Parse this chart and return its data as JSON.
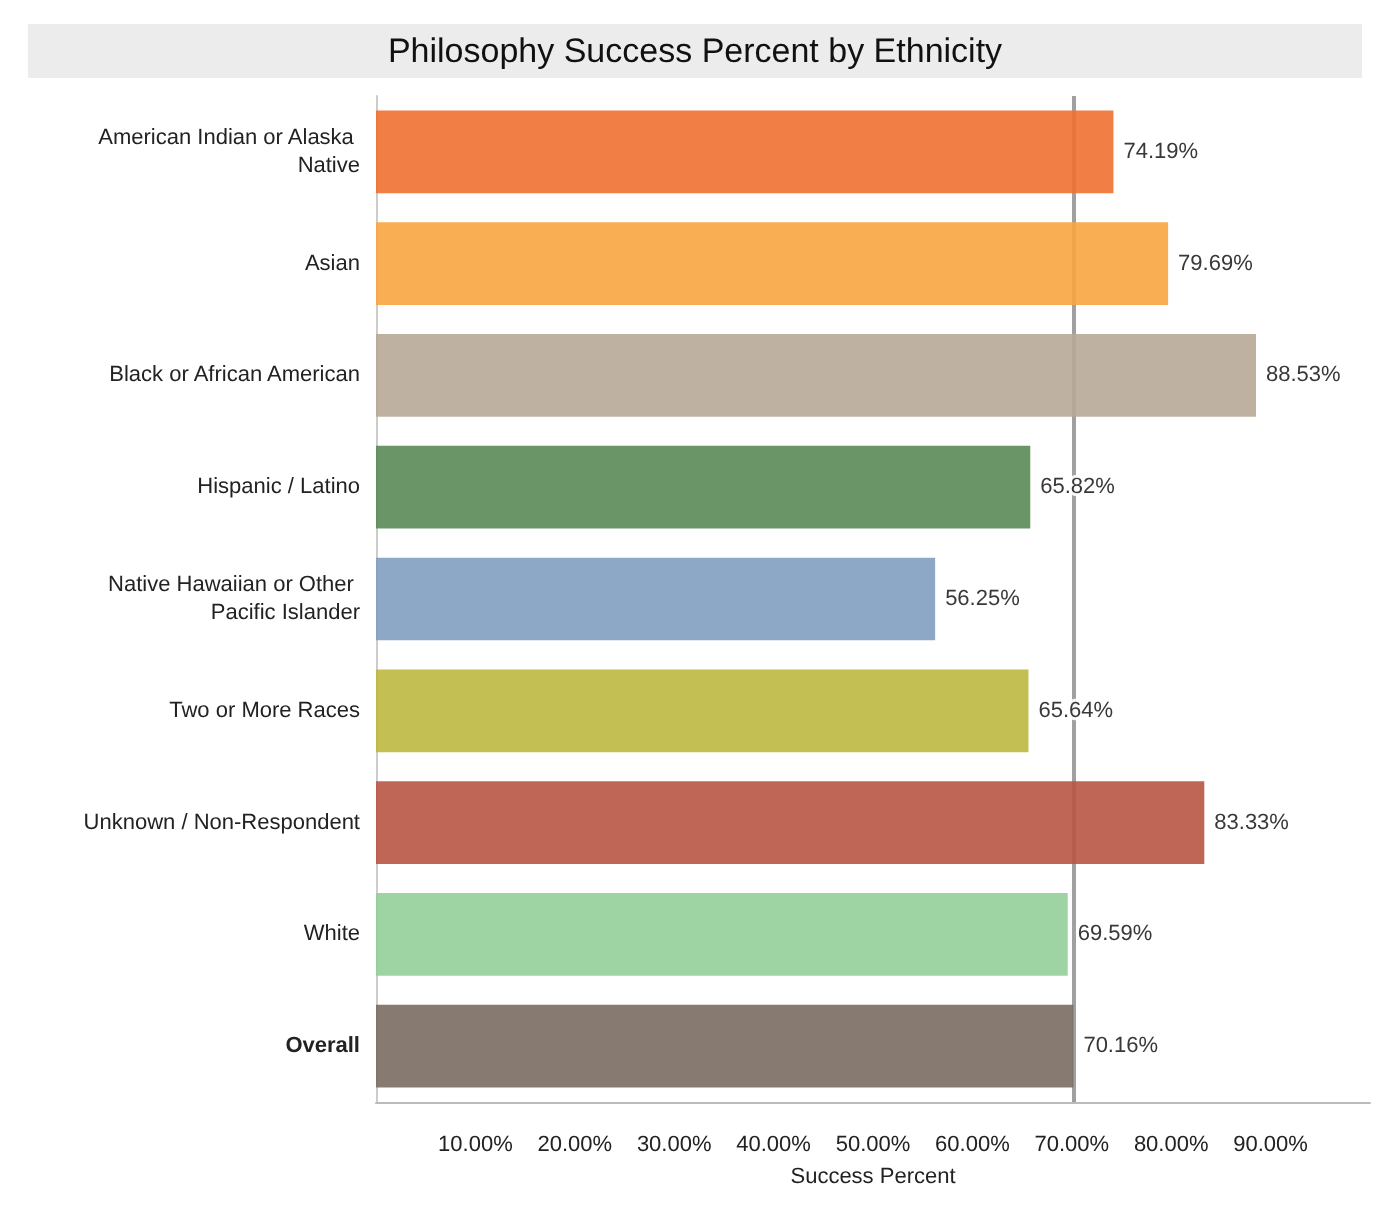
{
  "chart_data": {
    "type": "bar",
    "orientation": "horizontal",
    "title": "Philosophy Success Percent by Ethnicity",
    "xlabel": "Success Percent",
    "categories": [
      "American Indian or Alaska Native",
      "Asian",
      "Black or African American",
      "Hispanic / Latino",
      "Native Hawaiian or Other Pacific Islander",
      "Two or More Races",
      "Unknown / Non-Respondent",
      "White",
      "Overall"
    ],
    "values": [
      74.19,
      79.69,
      88.53,
      65.82,
      56.25,
      65.64,
      83.33,
      69.59,
      70.16
    ],
    "colors": [
      "#f07030",
      "#f8a540",
      "#b8a898",
      "#5a8a55",
      "#7f9ec0",
      "#bdb840",
      "#b85545",
      "#94cf9a",
      "#7a6c62"
    ],
    "value_labels": [
      "74.19%",
      "79.69%",
      "88.53%",
      "65.82%",
      "56.25%",
      "65.64%",
      "83.33%",
      "69.59%",
      "70.16%"
    ],
    "xlim": [
      0,
      100
    ],
    "xticks": [
      {
        "value": 10,
        "label": "10.00%"
      },
      {
        "value": 20,
        "label": "20.00%"
      },
      {
        "value": 30,
        "label": "30.00%"
      },
      {
        "value": 40,
        "label": "40.00%"
      },
      {
        "value": 50,
        "label": "50.00%"
      },
      {
        "value": 60,
        "label": "60.00%"
      },
      {
        "value": 70,
        "label": "70.00%"
      },
      {
        "value": 80,
        "label": "80.00%"
      },
      {
        "value": 90,
        "label": "90.00%"
      }
    ],
    "ref_lines": [
      {
        "axis": "x",
        "value": 70.16,
        "color": "#a0a0a0"
      }
    ],
    "grid": false
  }
}
